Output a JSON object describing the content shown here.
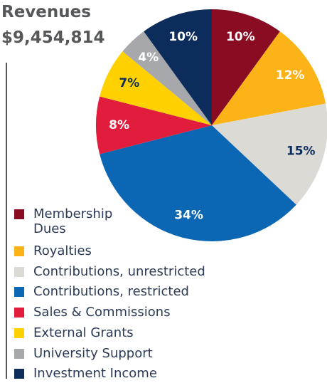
{
  "chart_data": {
    "type": "pie",
    "title": "Revenues",
    "subtitle": "$9,454,814",
    "categories": [
      "Membership Dues",
      "Royalties",
      "Contributions, unrestricted",
      "Contributions, restricted",
      "Sales & Commissions",
      "External Grants",
      "University Support",
      "Investment Income"
    ],
    "values": [
      10,
      12,
      15,
      34,
      8,
      7,
      4,
      10
    ],
    "value_labels": [
      "10%",
      "12%",
      "15%",
      "34%",
      "8%",
      "7%",
      "4%",
      "10%"
    ],
    "colors": [
      "#8a0c22",
      "#fbb317",
      "#dcdad4",
      "#0b67b3",
      "#e21c3c",
      "#ffd101",
      "#a6a8ab",
      "#0c2d5c"
    ],
    "label_colors": [
      "#ffffff",
      "#ffffff",
      "#0c2d5c",
      "#ffffff",
      "#ffffff",
      "#0c2d5c",
      "#ffffff",
      "#ffffff"
    ]
  }
}
